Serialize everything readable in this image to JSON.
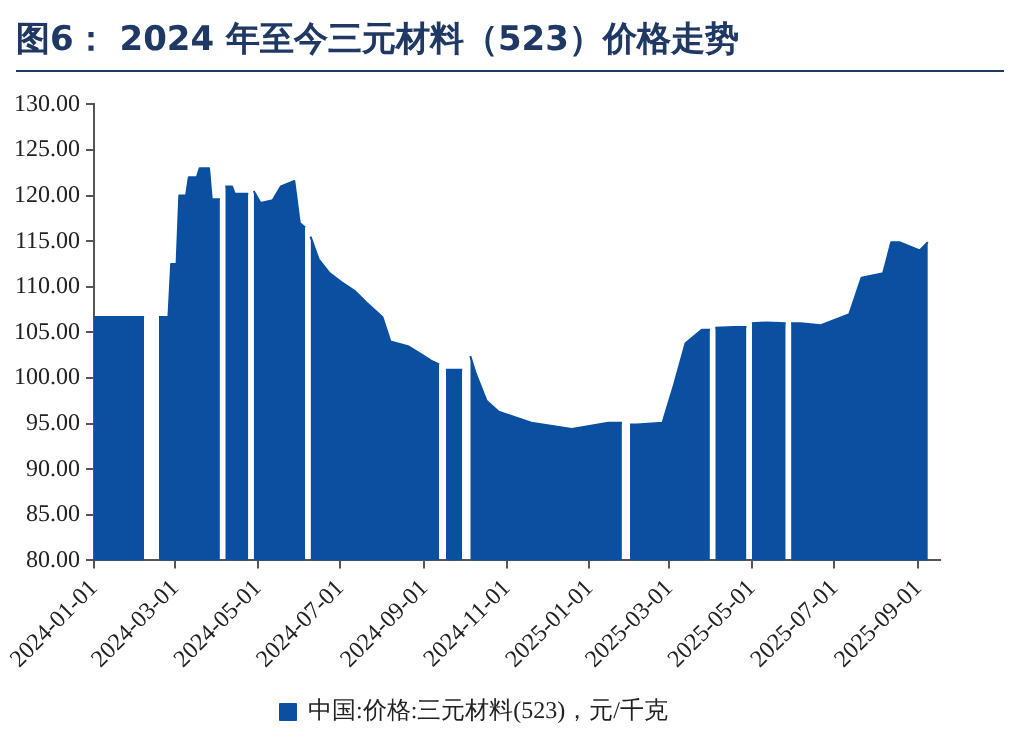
{
  "chart_data": {
    "type": "area",
    "title": "图6： 2024 年至今三元材料（523）价格走势",
    "legend": "bottom",
    "series": [
      {
        "name": "中国:价格:三元材料(523)，元/千克",
        "color": "#0a4fa0",
        "x": [
          "2024-01-01",
          "2024-02-07",
          "2024-02-12",
          "2024-02-18",
          "2024-02-25",
          "2024-02-27",
          "2024-03-02",
          "2024-03-04",
          "2024-03-09",
          "2024-03-11",
          "2024-03-17",
          "2024-03-19",
          "2024-03-26",
          "2024-03-28",
          "2024-04-03",
          "2024-04-05",
          "2024-04-07",
          "2024-04-12",
          "2024-04-14",
          "2024-04-24",
          "2024-04-26",
          "2024-04-28",
          "2024-05-03",
          "2024-05-12",
          "2024-05-18",
          "2024-05-28",
          "2024-06-01",
          "2024-06-05",
          "2024-06-07",
          "2024-06-09",
          "2024-06-15",
          "2024-06-23",
          "2024-07-02",
          "2024-07-12",
          "2024-07-20",
          "2024-08-01",
          "2024-08-07",
          "2024-08-20",
          "2024-08-31",
          "2024-09-06",
          "2024-09-12",
          "2024-09-14",
          "2024-09-17",
          "2024-09-29",
          "2024-10-02",
          "2024-10-05",
          "2024-10-09",
          "2024-10-17",
          "2024-10-26",
          "2024-11-19",
          "2024-12-19",
          "2025-01-15",
          "2025-01-25",
          "2025-01-28",
          "2025-01-31",
          "2025-02-05",
          "2025-02-24",
          "2025-03-04",
          "2025-03-13",
          "2025-03-25",
          "2025-03-31",
          "2025-04-02",
          "2025-04-04",
          "2025-04-18",
          "2025-04-27",
          "2025-04-29",
          "2025-05-01",
          "2025-05-12",
          "2025-05-26",
          "2025-05-28",
          "2025-05-30",
          "2025-06-06",
          "2025-06-21",
          "2025-07-12",
          "2025-07-21",
          "2025-08-06",
          "2025-08-12",
          "2025-08-18",
          "2025-09-02",
          "2025-09-08"
        ],
        "values": [
          106.7,
          106.7,
          null,
          106.7,
          106.7,
          112.5,
          112.5,
          120.0,
          120.0,
          122.0,
          122.0,
          123.0,
          123.0,
          119.6,
          119.6,
          null,
          121.0,
          121.0,
          120.2,
          120.2,
          null,
          120.5,
          119.2,
          119.5,
          121.0,
          121.6,
          117.0,
          116.5,
          null,
          115.5,
          113.0,
          111.5,
          110.5,
          109.5,
          108.3,
          106.7,
          104.0,
          103.5,
          102.5,
          101.9,
          101.5,
          null,
          100.9,
          100.9,
          null,
          102.4,
          100.5,
          97.5,
          96.3,
          95.1,
          94.4,
          95.1,
          95.1,
          null,
          94.9,
          94.9,
          95.1,
          99.0,
          103.8,
          105.3,
          105.3,
          null,
          105.5,
          105.6,
          105.6,
          null,
          106.0,
          106.1,
          106.0,
          null,
          106.0,
          106.0,
          105.8,
          107.0,
          111.0,
          111.5,
          114.9,
          114.9,
          114.0,
          114.9
        ]
      }
    ],
    "xlim": [
      "2024-01-01",
      "2025-09-17"
    ],
    "xticks": [
      "2024-01-01",
      "2024-03-01",
      "2024-05-01",
      "2024-07-01",
      "2024-09-01",
      "2024-11-01",
      "2025-01-01",
      "2025-03-01",
      "2025-05-01",
      "2025-07-01",
      "2025-09-01"
    ],
    "ylim": [
      80,
      130
    ],
    "yticks": [
      {
        "value": 80,
        "label": "80.00"
      },
      {
        "value": 85,
        "label": "85.00"
      },
      {
        "value": 90,
        "label": "90.00"
      },
      {
        "value": 95,
        "label": "95.00"
      },
      {
        "value": 100,
        "label": "100.00"
      },
      {
        "value": 105,
        "label": "105.00"
      },
      {
        "value": 110,
        "label": "110.00"
      },
      {
        "value": 115,
        "label": "115.00"
      },
      {
        "value": 120,
        "label": "120.00"
      },
      {
        "value": 125,
        "label": "125.00"
      },
      {
        "value": 130,
        "label": "130.00"
      }
    ]
  }
}
